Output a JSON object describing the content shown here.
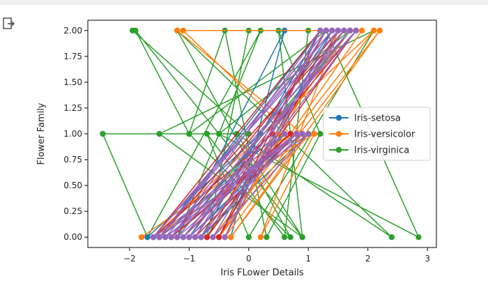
{
  "chart_data": {
    "type": "line",
    "xlabel": "Iris FLower Details",
    "ylabel": "Flower Family",
    "xlim": [
      -2.7,
      3.15
    ],
    "ylim": [
      -0.1,
      2.1
    ],
    "xticks": [
      -2,
      -1,
      0,
      1,
      2,
      3
    ],
    "xtick_labels": [
      "−2",
      "−1",
      "0",
      "1",
      "2",
      "3"
    ],
    "yticks": [
      0.0,
      0.25,
      0.5,
      0.75,
      1.0,
      1.25,
      1.5,
      1.75,
      2.0
    ],
    "ytick_labels": [
      "0.00",
      "0.25",
      "0.50",
      "0.75",
      "1.00",
      "1.25",
      "1.50",
      "1.75",
      "2.00"
    ],
    "legend_position": "center-right",
    "grid": false,
    "legend": [
      {
        "name": "Iris-setosa",
        "color": "#1f77b4"
      },
      {
        "name": "Iris-versicolor",
        "color": "#ff7f0e"
      },
      {
        "name": "Iris-virginica",
        "color": "#2ca02c"
      }
    ],
    "series": [
      {
        "name": "Iris-virginica",
        "color": "#2ca02c",
        "x": [
          -1.95,
          0.0,
          -2.45,
          -1.7,
          0.2,
          -1.2,
          1.7,
          -0.5,
          2.85,
          1.3,
          -1.0,
          -1.9,
          0.9,
          -0.2,
          2.4,
          -1.2,
          1.0,
          0.6,
          -0.7,
          0.0,
          2.1,
          -1.5,
          0.9,
          0.5,
          1.2,
          0.3,
          -0.4,
          -1.0,
          0.7,
          -1.2,
          0.6,
          -0.7,
          0.0
        ],
        "y": [
          2,
          1,
          1,
          0,
          2,
          0,
          2,
          1,
          0,
          2,
          1,
          2,
          0,
          1,
          0,
          2,
          2,
          0,
          1,
          0,
          2,
          1,
          0,
          2,
          1,
          0,
          2,
          1,
          0,
          2,
          1,
          0,
          2
        ]
      },
      {
        "color": "#1f77b4",
        "x": [
          -1.7,
          0.2,
          -1.2,
          0.6,
          -0.3,
          1.0,
          -0.8,
          1.2,
          -1.5,
          0.5,
          -0.5,
          1.4,
          -1.0,
          0.8
        ],
        "y": [
          0,
          1,
          0,
          2,
          0,
          1,
          0,
          2,
          0,
          1,
          0,
          2,
          0,
          1
        ]
      },
      {
        "name": "Iris-versicolor",
        "color": "#ff7f0e",
        "x": [
          -1.8,
          0.7,
          -1.1,
          1.9,
          -0.5,
          2.2,
          -0.3,
          1.0,
          -0.6,
          2.1,
          -1.6,
          1.1,
          0.2,
          1.5,
          -0.4,
          0.9,
          -1.2,
          1.7,
          -0.8,
          0.5
        ],
        "y": [
          0,
          1,
          2,
          2,
          0,
          2,
          0,
          1,
          0,
          2,
          0,
          1,
          0,
          2,
          0,
          1,
          2,
          2,
          0,
          1
        ]
      },
      {
        "color": "#d62728",
        "x": [
          -1.3,
          0.8,
          -0.9,
          1.6,
          -1.5,
          1.3,
          -0.7,
          1.8,
          -1.1,
          0.7,
          -1.3,
          1.5,
          -0.5,
          1.2,
          -1.6,
          0.4
        ],
        "y": [
          0,
          1,
          0,
          2,
          0,
          2,
          0,
          2,
          0,
          1,
          0,
          2,
          0,
          2,
          0,
          1
        ]
      },
      {
        "color": "#9467bd",
        "x": [
          -1.6,
          0.8,
          -1.4,
          1.7,
          -1.0,
          0.9,
          -1.5,
          1.4,
          -0.4,
          1.2,
          -1.3,
          1.8,
          -0.8,
          0.8,
          -1.6,
          1.5,
          -0.6,
          1.0,
          -1.4,
          1.7,
          -1.1,
          0.6,
          -1.5,
          1.3,
          -0.9,
          1.6,
          -1.2,
          0.8,
          -1.6,
          1.4
        ],
        "y": [
          0,
          1,
          0,
          2,
          0,
          1,
          0,
          2,
          0,
          2,
          0,
          2,
          0,
          1,
          0,
          2,
          0,
          1,
          0,
          2,
          0,
          1,
          0,
          2,
          0,
          2,
          0,
          1,
          0,
          2
        ]
      }
    ]
  }
}
